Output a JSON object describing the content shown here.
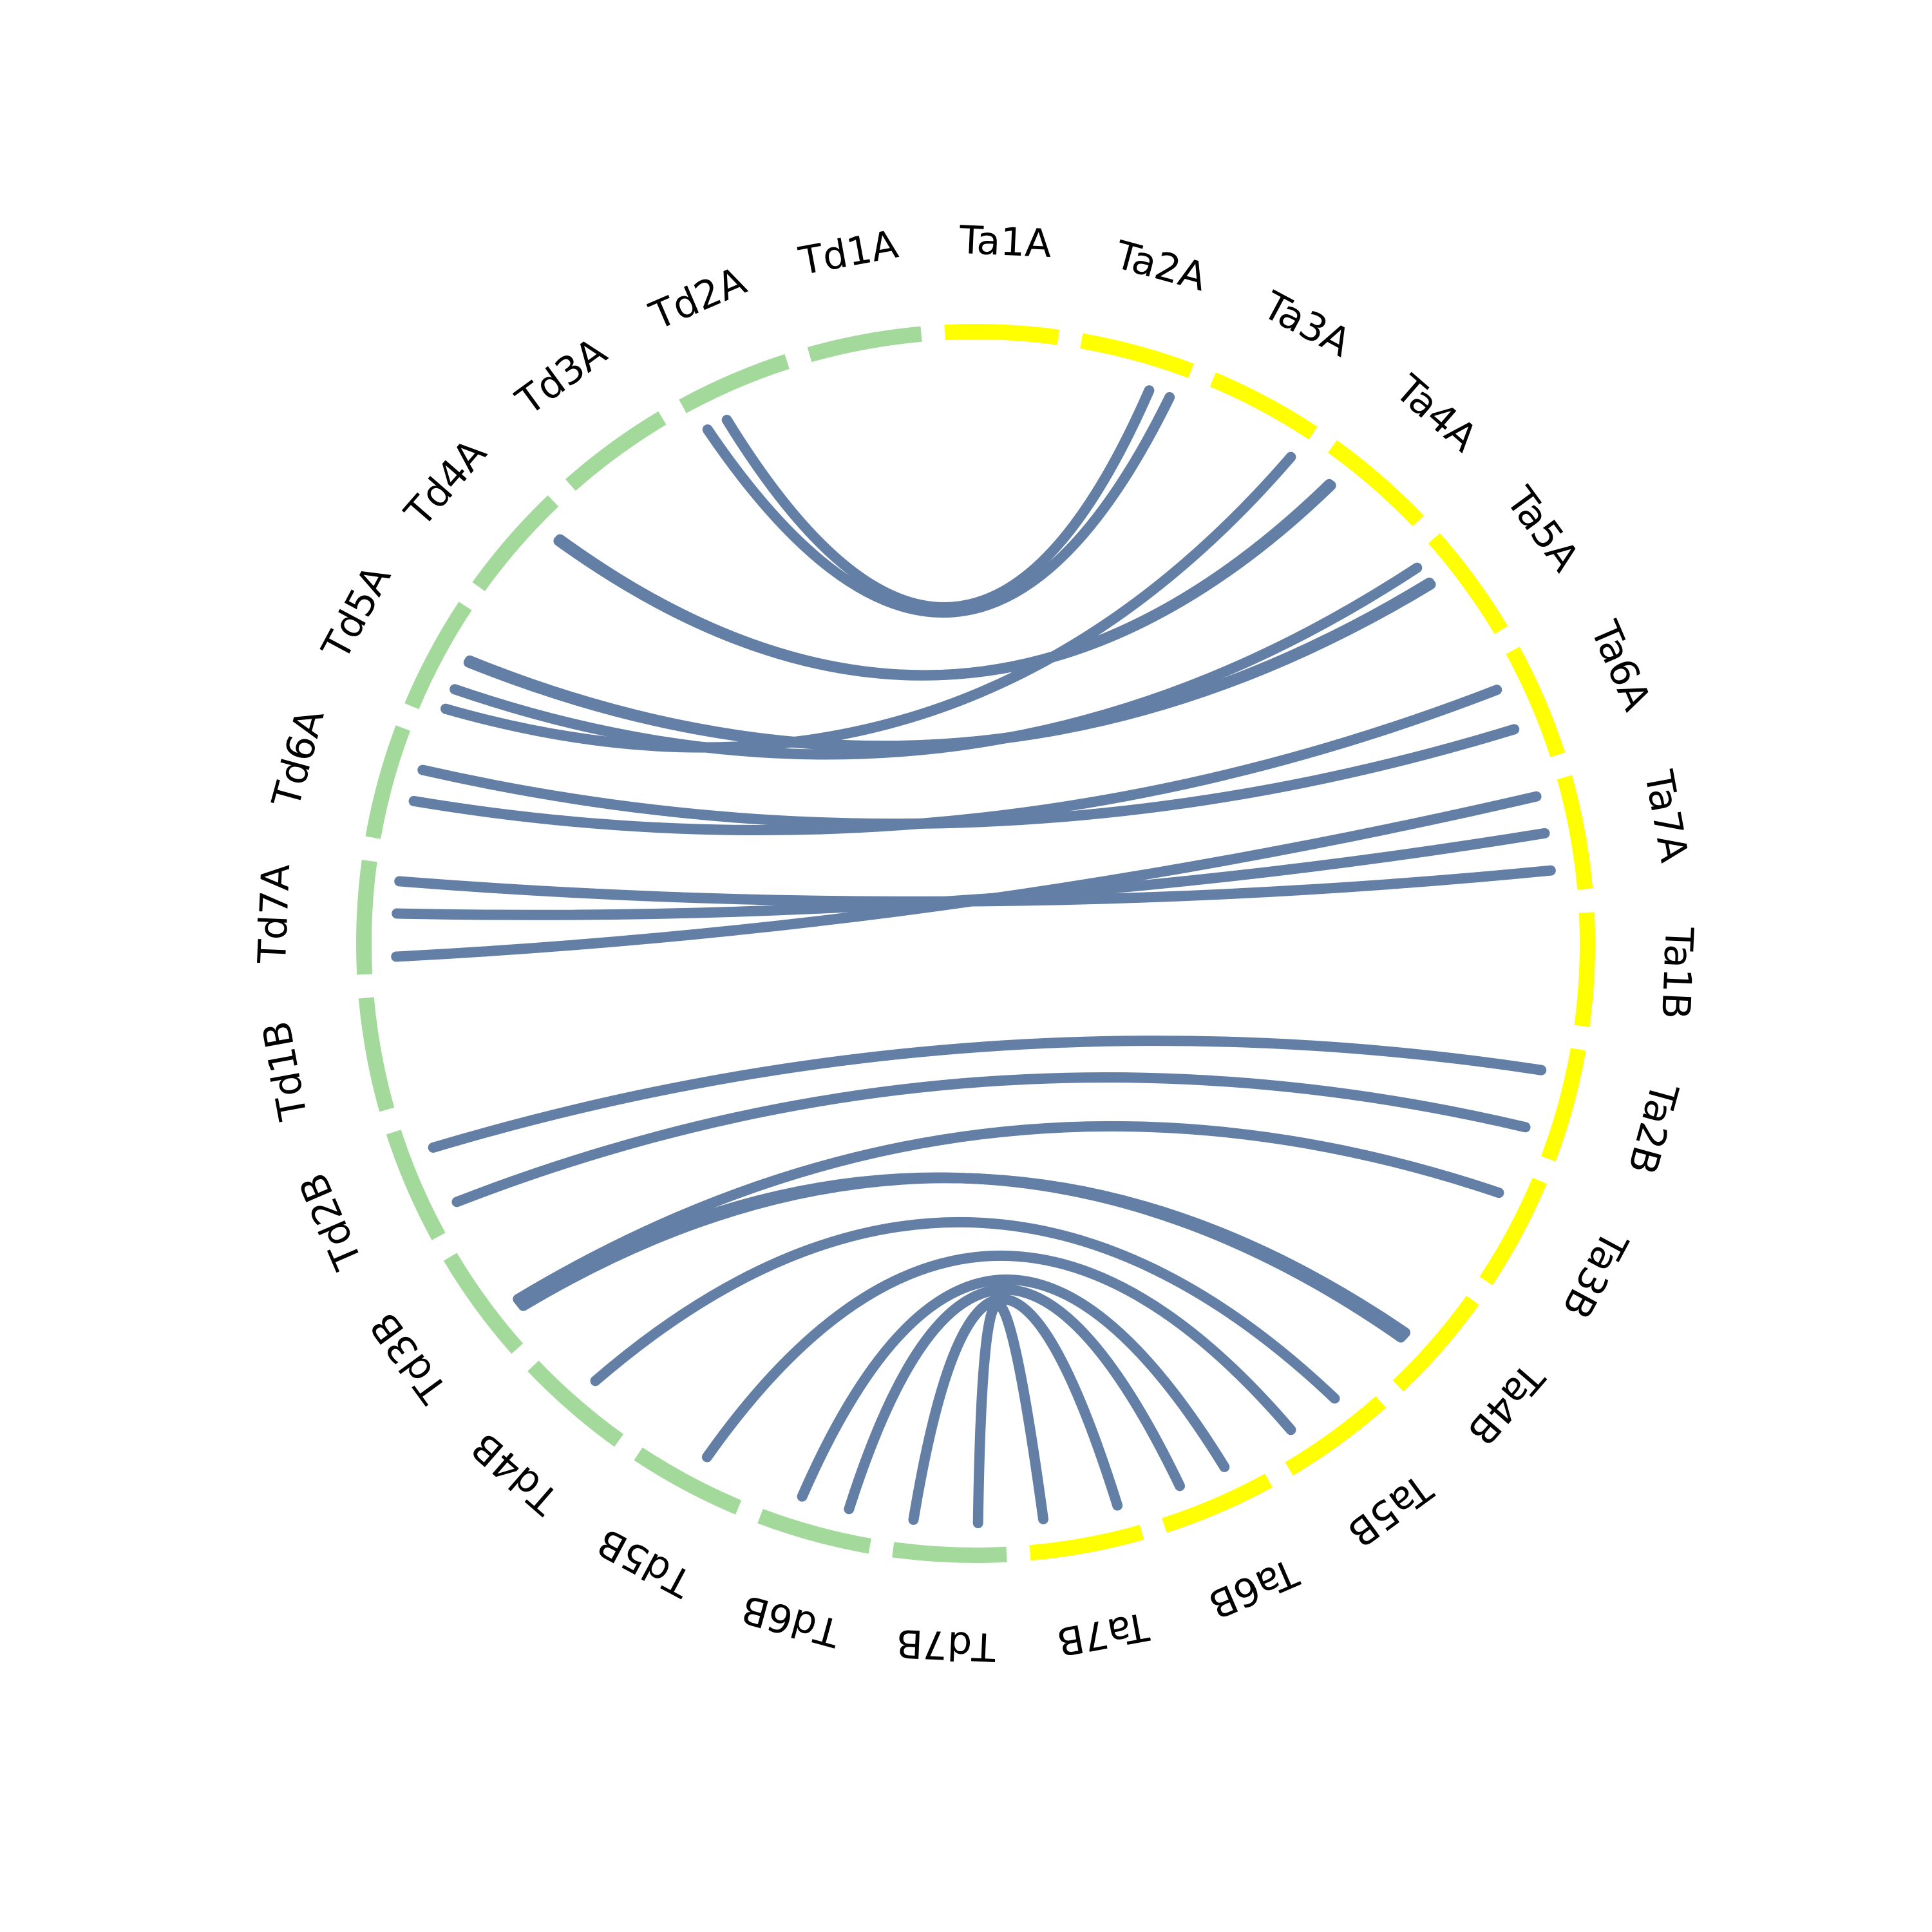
{
  "colors": {
    "td_segment": "#a3d99b",
    "ta_segment": "#ffff00",
    "link": "#637fa5",
    "label": "#000000"
  },
  "chromosomes": [
    {
      "id": "Td1B",
      "group": "Td"
    },
    {
      "id": "Td2B",
      "group": "Td"
    },
    {
      "id": "Td3B",
      "group": "Td"
    },
    {
      "id": "Td4B",
      "group": "Td"
    },
    {
      "id": "Td5B",
      "group": "Td"
    },
    {
      "id": "Td6B",
      "group": "Td"
    },
    {
      "id": "Td7B",
      "group": "Td"
    },
    {
      "id": "Ta7B",
      "group": "Ta"
    },
    {
      "id": "Ta6B",
      "group": "Ta"
    },
    {
      "id": "Ta5B",
      "group": "Ta"
    },
    {
      "id": "Ta4B",
      "group": "Ta"
    },
    {
      "id": "Ta3B",
      "group": "Ta"
    },
    {
      "id": "Ta2B",
      "group": "Ta"
    },
    {
      "id": "Ta1B",
      "group": "Ta"
    },
    {
      "id": "Ta7A",
      "group": "Ta"
    },
    {
      "id": "Ta6A",
      "group": "Ta"
    },
    {
      "id": "Ta5A",
      "group": "Ta"
    },
    {
      "id": "Ta4A",
      "group": "Ta"
    },
    {
      "id": "Ta3A",
      "group": "Ta"
    },
    {
      "id": "Ta2A",
      "group": "Ta"
    },
    {
      "id": "Ta1A",
      "group": "Ta"
    },
    {
      "id": "Td1A",
      "group": "Td"
    },
    {
      "id": "Td2A",
      "group": "Td"
    },
    {
      "id": "Td3A",
      "group": "Td"
    },
    {
      "id": "Td4A",
      "group": "Td"
    },
    {
      "id": "Td5A",
      "group": "Td"
    },
    {
      "id": "Td6A",
      "group": "Td"
    },
    {
      "id": "Td7A",
      "group": "Td"
    }
  ],
  "links": [
    {
      "from": [
        "Td2A",
        0.7
      ],
      "to": [
        "Ta2A",
        0.3
      ]
    },
    {
      "from": [
        "Td2A",
        0.9
      ],
      "to": [
        "Ta2A",
        0.1
      ]
    },
    {
      "from": [
        "Td4A",
        0.2
      ],
      "to": [
        "Ta4A",
        0.8
      ]
    },
    {
      "from": [
        "Td4A",
        0.22
      ],
      "to": [
        "Ta4A",
        0.82
      ]
    },
    {
      "from": [
        "Td5A",
        0.9
      ],
      "to": [
        "Ta3A",
        0.05
      ]
    },
    {
      "from": [
        "Td5A",
        0.7
      ],
      "to": [
        "Ta5A",
        0.9
      ]
    },
    {
      "from": [
        "Td5A",
        0.4
      ],
      "to": [
        "Ta5A",
        0.7
      ]
    },
    {
      "from": [
        "Td5A",
        0.42
      ],
      "to": [
        "Ta5A",
        0.72
      ]
    },
    {
      "from": [
        "Td6A",
        0.6
      ],
      "to": [
        "Ta6A",
        0.75
      ]
    },
    {
      "from": [
        "Td6A",
        0.3
      ],
      "to": [
        "Ta6A",
        0.35
      ]
    },
    {
      "from": [
        "Td7A",
        0.85
      ],
      "to": [
        "Ta7A",
        0.9
      ]
    },
    {
      "from": [
        "Td7A",
        0.45
      ],
      "to": [
        "Ta7A",
        0.55
      ]
    },
    {
      "from": [
        "Td7A",
        0.15
      ],
      "to": [
        "Ta7A",
        0.2
      ]
    },
    {
      "from": [
        "Td2B",
        0.8
      ],
      "to": [
        "Ta2B",
        0.2
      ]
    },
    {
      "from": [
        "Td2B",
        0.25
      ],
      "to": [
        "Ta2B",
        0.75
      ]
    },
    {
      "from": [
        "Td3B",
        0.7
      ],
      "to": [
        "Ta4B",
        0.35
      ]
    },
    {
      "from": [
        "Td3B",
        0.72
      ],
      "to": [
        "Ta4B",
        0.37
      ]
    },
    {
      "from": [
        "Td3B",
        0.74
      ],
      "to": [
        "Ta4B",
        0.39
      ]
    },
    {
      "from": [
        "Td3B",
        0.68
      ],
      "to": [
        "Ta4B",
        0.33
      ]
    },
    {
      "from": [
        "Td3B",
        0.66
      ],
      "to": [
        "Ta3B",
        0.75
      ]
    },
    {
      "from": [
        "Td4B",
        0.5
      ],
      "to": [
        "Ta5B",
        0.7
      ]
    },
    {
      "from": [
        "Td5B",
        0.55
      ],
      "to": [
        "Ta5B",
        0.2
      ]
    },
    {
      "from": [
        "Td6B",
        0.3
      ],
      "to": [
        "Ta6B",
        0.7
      ]
    },
    {
      "from": [
        "Td6B",
        0.75
      ],
      "to": [
        "Ta6B",
        0.25
      ]
    },
    {
      "from": [
        "Td7B",
        0.15
      ],
      "to": [
        "Ta7B",
        0.85
      ]
    },
    {
      "from": [
        "Td7B",
        0.75
      ],
      "to": [
        "Ta7B",
        0.15
      ]
    }
  ]
}
